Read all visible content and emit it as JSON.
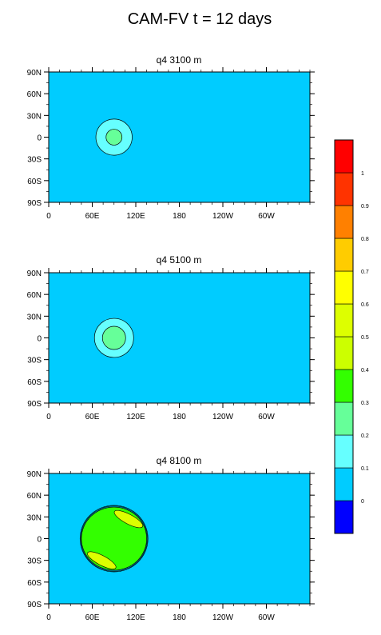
{
  "main_title": "CAM-FV t = 12 days",
  "colors": {
    "background_field": "#00CCFF",
    "levels": [
      "#0000FF",
      "#00CCFF",
      "#66FFFF",
      "#66FF99",
      "#33FF00",
      "#CCFF00",
      "#DDFF00",
      "#FFFF00",
      "#FFCC00",
      "#FF8000",
      "#FF3300",
      "#FF0000"
    ]
  },
  "chart_data": [
    {
      "type": "heatmap",
      "title": "q4 3100 m",
      "x_tick_labels": [
        "0",
        "60E",
        "120E",
        "180",
        "120W",
        "60W"
      ],
      "y_tick_labels": [
        "90N",
        "60N",
        "30N",
        "0",
        "30S",
        "60S",
        "90S"
      ],
      "xlim": [
        0,
        360
      ],
      "ylim": [
        -90,
        90
      ],
      "background_value_range": [
        0,
        0.1
      ],
      "features": [
        {
          "shape": "contour-ring",
          "center_lon": 90,
          "center_lat": 0,
          "radius_deg": 25,
          "level": [
            0.1,
            0.2
          ]
        },
        {
          "shape": "contour-ring",
          "center_lon": 90,
          "center_lat": 0,
          "radius_deg": 11,
          "level": [
            0.2,
            0.3
          ]
        }
      ]
    },
    {
      "type": "heatmap",
      "title": "q4 5100 m",
      "x_tick_labels": [
        "0",
        "60E",
        "120E",
        "180",
        "120W",
        "60W"
      ],
      "y_tick_labels": [
        "90N",
        "60N",
        "30N",
        "0",
        "30S",
        "60S",
        "90S"
      ],
      "xlim": [
        0,
        360
      ],
      "ylim": [
        -90,
        90
      ],
      "background_value_range": [
        0,
        0.1
      ],
      "features": [
        {
          "shape": "contour-ring",
          "center_lon": 90,
          "center_lat": 0,
          "radius_deg": 27,
          "level": [
            0.1,
            0.2
          ]
        },
        {
          "shape": "contour-ring",
          "center_lon": 90,
          "center_lat": 0,
          "radius_deg": 16,
          "level": [
            0.2,
            0.3
          ]
        }
      ]
    },
    {
      "type": "heatmap",
      "title": "q4 8100 m",
      "x_tick_labels": [
        "0",
        "60E",
        "120E",
        "180",
        "120W",
        "60W"
      ],
      "y_tick_labels": [
        "90N",
        "60N",
        "30N",
        "0",
        "30S",
        "60S",
        "90S"
      ],
      "xlim": [
        0,
        360
      ],
      "ylim": [
        -90,
        90
      ],
      "background_value_range": [
        0,
        0.1
      ],
      "features": [
        {
          "shape": "contour-ring",
          "center_lon": 90,
          "center_lat": 0,
          "radius_deg": 45,
          "level": [
            0.3,
            0.4
          ]
        },
        {
          "shape": "lobe",
          "center_lon": 110,
          "center_lat": 27,
          "level": [
            0.5,
            0.6
          ]
        },
        {
          "shape": "lobe",
          "center_lon": 73,
          "center_lat": -30,
          "level": [
            0.5,
            0.6
          ]
        }
      ]
    }
  ],
  "colorbar": {
    "labels": [
      "0",
      "0.1",
      "0.2",
      "0.3",
      "0.4",
      "0.5",
      "0.6",
      "0.7",
      "0.8",
      "0.9",
      "1"
    ]
  }
}
